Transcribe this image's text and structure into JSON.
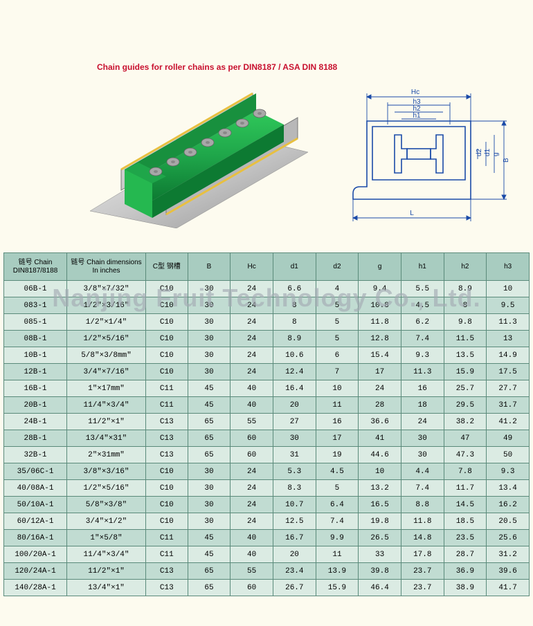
{
  "caption": "Chain guides for roller chains as per DIN8187 / ASA DIN 8188",
  "watermark": "Nanjing Fruit Technology Co., Ltd.",
  "headers": {
    "chain": "链号 Chain DIN8187/8188",
    "dim": "链号 Chain dimensions In inches",
    "ctype": "C型 钢槽",
    "B": "B",
    "Hc": "Hc",
    "d1": "d1",
    "d2": "d2",
    "g": "g",
    "h1": "h1",
    "h2": "h2",
    "h3": "h3"
  },
  "tech_labels": {
    "Hc": "Hc",
    "h3": "h3",
    "h2": "h2",
    "h1": "h1",
    "d2": "d2",
    "d1": "d1",
    "g": "g",
    "B": "B",
    "L": "L"
  },
  "rows": [
    {
      "chain": "06B-1",
      "dim": "3/8″×7/32″",
      "c": "C10",
      "B": "30",
      "Hc": "24",
      "d1": "6.6",
      "d2": "4",
      "g": "9.4",
      "h1": "5.5",
      "h2": "8.9",
      "h3": "10"
    },
    {
      "chain": "083-1",
      "dim": "1/2″×3/16″",
      "c": "C10",
      "B": "30",
      "Hc": "24",
      "d1": "8",
      "d2": "5",
      "g": "10.8",
      "h1": "4.5",
      "h2": "8",
      "h3": "9.5"
    },
    {
      "chain": "085-1",
      "dim": "1/2″×1/4″",
      "c": "C10",
      "B": "30",
      "Hc": "24",
      "d1": "8",
      "d2": "5",
      "g": "11.8",
      "h1": "6.2",
      "h2": "9.8",
      "h3": "11.3"
    },
    {
      "chain": "08B-1",
      "dim": "1/2″×5/16″",
      "c": "C10",
      "B": "30",
      "Hc": "24",
      "d1": "8.9",
      "d2": "5",
      "g": "12.8",
      "h1": "7.4",
      "h2": "11.5",
      "h3": "13"
    },
    {
      "chain": "10B-1",
      "dim": "5/8″×3/8mm″",
      "c": "C10",
      "B": "30",
      "Hc": "24",
      "d1": "10.6",
      "d2": "6",
      "g": "15.4",
      "h1": "9.3",
      "h2": "13.5",
      "h3": "14.9"
    },
    {
      "chain": "12B-1",
      "dim": "3/4″×7/16″",
      "c": "C10",
      "B": "30",
      "Hc": "24",
      "d1": "12.4",
      "d2": "7",
      "g": "17",
      "h1": "11.3",
      "h2": "15.9",
      "h3": "17.5"
    },
    {
      "chain": "16B-1",
      "dim": "1″×17mm″",
      "c": "C11",
      "B": "45",
      "Hc": "40",
      "d1": "16.4",
      "d2": "10",
      "g": "24",
      "h1": "16",
      "h2": "25.7",
      "h3": "27.7"
    },
    {
      "chain": "20B-1",
      "dim": "11/4″×3/4″",
      "c": "C11",
      "B": "45",
      "Hc": "40",
      "d1": "20",
      "d2": "11",
      "g": "28",
      "h1": "18",
      "h2": "29.5",
      "h3": "31.7"
    },
    {
      "chain": "24B-1",
      "dim": "11/2″×1″",
      "c": "C13",
      "B": "65",
      "Hc": "55",
      "d1": "27",
      "d2": "16",
      "g": "36.6",
      "h1": "24",
      "h2": "38.2",
      "h3": "41.2"
    },
    {
      "chain": "28B-1",
      "dim": "13/4″×31″",
      "c": "C13",
      "B": "65",
      "Hc": "60",
      "d1": "30",
      "d2": "17",
      "g": "41",
      "h1": "30",
      "h2": "47",
      "h3": "49"
    },
    {
      "chain": "32B-1",
      "dim": "2″×31mm″",
      "c": "C13",
      "B": "65",
      "Hc": "60",
      "d1": "31",
      "d2": "19",
      "g": "44.6",
      "h1": "30",
      "h2": "47.3",
      "h3": "50"
    },
    {
      "chain": "35/06C-1",
      "dim": "3/8″×3/16″",
      "c": "C10",
      "B": "30",
      "Hc": "24",
      "d1": "5.3",
      "d2": "4.5",
      "g": "10",
      "h1": "4.4",
      "h2": "7.8",
      "h3": "9.3"
    },
    {
      "chain": "40/08A-1",
      "dim": "1/2″×5/16″",
      "c": "C10",
      "B": "30",
      "Hc": "24",
      "d1": "8.3",
      "d2": "5",
      "g": "13.2",
      "h1": "7.4",
      "h2": "11.7",
      "h3": "13.4"
    },
    {
      "chain": "50/10A-1",
      "dim": "5/8″×3/8″",
      "c": "C10",
      "B": "30",
      "Hc": "24",
      "d1": "10.7",
      "d2": "6.4",
      "g": "16.5",
      "h1": "8.8",
      "h2": "14.5",
      "h3": "16.2"
    },
    {
      "chain": "60/12A-1",
      "dim": "3/4″×1/2″",
      "c": "C10",
      "B": "30",
      "Hc": "24",
      "d1": "12.5",
      "d2": "7.4",
      "g": "19.8",
      "h1": "11.8",
      "h2": "18.5",
      "h3": "20.5"
    },
    {
      "chain": "80/16A-1",
      "dim": "1″×5/8″",
      "c": "C11",
      "B": "45",
      "Hc": "40",
      "d1": "16.7",
      "d2": "9.9",
      "g": "26.5",
      "h1": "14.8",
      "h2": "23.5",
      "h3": "25.6"
    },
    {
      "chain": "100/20A-1",
      "dim": "11/4″×3/4″",
      "c": "C11",
      "B": "45",
      "Hc": "40",
      "d1": "20",
      "d2": "11",
      "g": "33",
      "h1": "17.8",
      "h2": "28.7",
      "h3": "31.2"
    },
    {
      "chain": "120/24A-1",
      "dim": "11/2″×1″",
      "c": "C13",
      "B": "65",
      "Hc": "55",
      "d1": "23.4",
      "d2": "13.9",
      "g": "39.8",
      "h1": "23.7",
      "h2": "36.9",
      "h3": "39.6"
    },
    {
      "chain": "140/28A-1",
      "dim": "13/4″×1″",
      "c": "C13",
      "B": "65",
      "Hc": "60",
      "d1": "26.7",
      "d2": "15.9",
      "g": "46.4",
      "h1": "23.7",
      "h2": "38.9",
      "h3": "41.7"
    }
  ],
  "colors": {
    "header_bg": "#a8ccc0",
    "row_odd": "#dbebe3",
    "row_even": "#c1dcd2",
    "border": "#5a8a7a",
    "caption": "#c8102e",
    "drawing": "#1a4aa8",
    "guide_green": "#1fa64a",
    "guide_green_dark": "#0d7a32",
    "metal": "#d0d0d0"
  }
}
